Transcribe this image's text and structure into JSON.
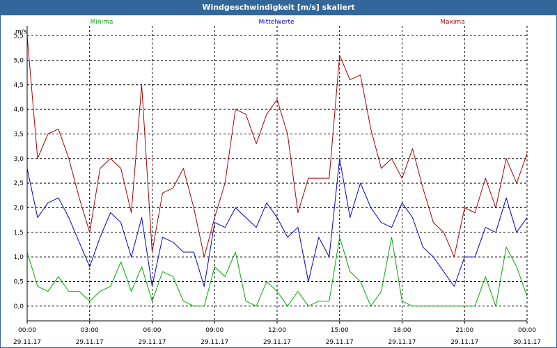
{
  "window": {
    "title": "Windgeschwindigkeit [m/s] skaliert"
  },
  "colors": {
    "minima": "#00aa00",
    "mittel": "#0000cc",
    "maxima": "#aa0000",
    "grid": "#000000"
  },
  "chart_data": {
    "type": "line",
    "title": "Windgeschwindigkeit [m/s] skaliert",
    "ylabel": "m/s",
    "ylim": [
      -0.3,
      5.7
    ],
    "xlim_hours": [
      0,
      24
    ],
    "yticks": [
      0.0,
      0.5,
      1.0,
      1.5,
      2.0,
      2.5,
      3.0,
      3.5,
      4.0,
      4.5,
      5.0,
      5.5
    ],
    "ytick_labels": [
      "0,0",
      "0,5",
      "1,0",
      "1,5",
      "2,0",
      "2,5",
      "3,0",
      "3,5",
      "4,0",
      "4,5",
      "5,0",
      "5,5"
    ],
    "xticks": [
      {
        "time": "00:00",
        "date": "29.11.17"
      },
      {
        "time": "03:00",
        "date": "29.11.17"
      },
      {
        "time": "06:00",
        "date": "29.11.17"
      },
      {
        "time": "09:00",
        "date": "29.11.17"
      },
      {
        "time": "12:00",
        "date": "29.11.17"
      },
      {
        "time": "15:00",
        "date": "29.11.17"
      },
      {
        "time": "18:00",
        "date": "29.11.17"
      },
      {
        "time": "21:00",
        "date": "29.11.17"
      },
      {
        "time": "00:00",
        "date": "30.11.17"
      }
    ],
    "legend_placement": "top",
    "grid": true,
    "x_hours": [
      0,
      0.5,
      1,
      1.5,
      2,
      2.5,
      3,
      3.5,
      4,
      4.5,
      5,
      5.5,
      6,
      6.5,
      7,
      7.5,
      8,
      8.5,
      9,
      9.5,
      10,
      10.5,
      11,
      11.5,
      12,
      12.5,
      13,
      13.5,
      14,
      14.5,
      15,
      15.5,
      16,
      16.5,
      17,
      17.5,
      18,
      18.5,
      19,
      19.5,
      20,
      20.5,
      21,
      21.5,
      22,
      22.5,
      23,
      23.5,
      24
    ],
    "series": [
      {
        "name": "Minima",
        "key": "minima",
        "values": [
          1.1,
          0.4,
          0.3,
          0.6,
          0.3,
          0.3,
          0.1,
          0.3,
          0.4,
          0.9,
          0.3,
          0.8,
          0.1,
          0.7,
          0.6,
          0.1,
          0.0,
          0.0,
          0.8,
          0.6,
          1.1,
          0.1,
          0.0,
          0.5,
          0.3,
          0.0,
          0.3,
          0.0,
          0.1,
          0.1,
          1.4,
          0.7,
          0.5,
          0.0,
          0.3,
          1.4,
          0.1,
          0.0,
          0.0,
          0.0,
          0.0,
          0.0,
          0.0,
          0.0,
          0.6,
          0.0,
          1.2,
          0.8,
          0.2
        ]
      },
      {
        "name": "Mittelwerte",
        "key": "mittel",
        "values": [
          2.8,
          1.8,
          2.1,
          2.2,
          1.8,
          1.3,
          0.8,
          1.4,
          1.9,
          1.7,
          1.0,
          1.8,
          0.4,
          1.4,
          1.3,
          1.1,
          1.1,
          0.4,
          1.7,
          1.6,
          2.0,
          1.8,
          1.6,
          2.1,
          1.8,
          1.4,
          1.6,
          0.5,
          1.4,
          1.0,
          3.0,
          1.8,
          2.5,
          2.0,
          1.7,
          1.6,
          2.1,
          1.8,
          1.2,
          1.0,
          0.7,
          0.4,
          1.0,
          1.0,
          1.6,
          1.5,
          2.2,
          1.5,
          1.8
        ]
      },
      {
        "name": "Maxima",
        "key": "maxima",
        "values": [
          5.5,
          3.0,
          3.5,
          3.6,
          3.0,
          2.2,
          1.5,
          2.8,
          3.0,
          2.8,
          1.9,
          4.5,
          1.1,
          2.3,
          2.4,
          2.8,
          2.0,
          1.0,
          1.8,
          2.5,
          4.0,
          3.9,
          3.3,
          3.9,
          4.2,
          3.5,
          1.9,
          2.6,
          2.6,
          2.6,
          5.1,
          4.6,
          4.7,
          3.6,
          2.8,
          3.0,
          2.6,
          3.2,
          2.4,
          1.7,
          1.5,
          1.0,
          2.0,
          1.9,
          2.6,
          2.0,
          3.0,
          2.5,
          3.1
        ]
      }
    ]
  }
}
